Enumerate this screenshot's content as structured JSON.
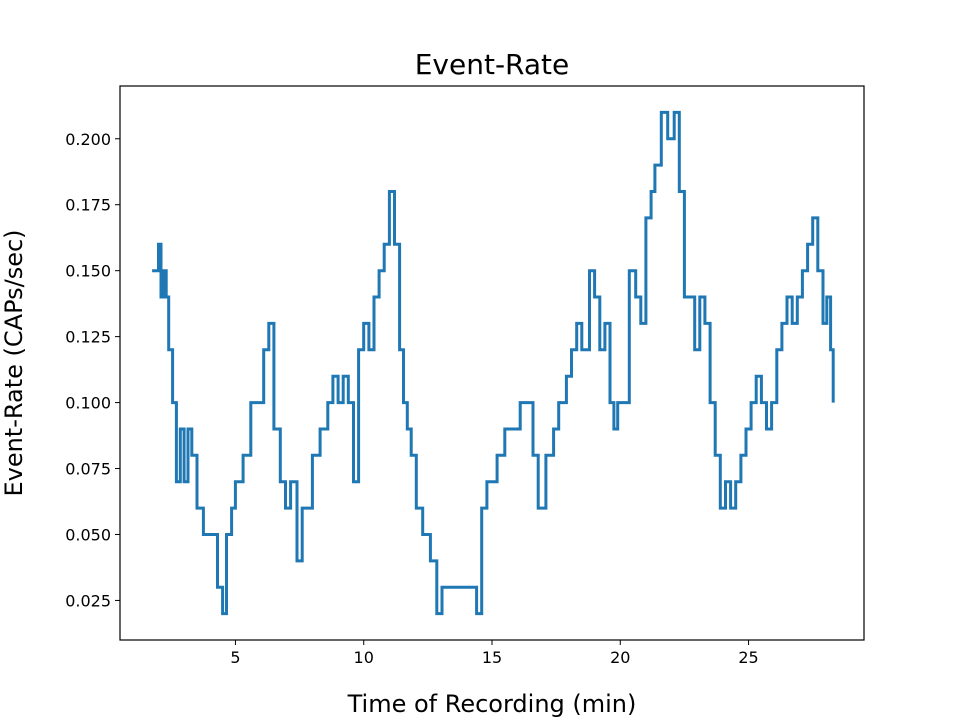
{
  "chart_data": {
    "type": "line",
    "title": "Event-Rate",
    "xlabel": "Time of Recording (min)",
    "ylabel": "Event-Rate (CAPs/sec)",
    "xlim": [
      0.5,
      29.5
    ],
    "ylim": [
      0.01,
      0.22
    ],
    "xticks": [
      5,
      10,
      15,
      20,
      25
    ],
    "yticks": [
      0.025,
      0.05,
      0.075,
      0.1,
      0.125,
      0.15,
      0.175,
      0.2
    ],
    "ytick_labels": [
      "0.025",
      "0.050",
      "0.075",
      "0.100",
      "0.125",
      "0.150",
      "0.175",
      "0.200"
    ],
    "grid": false,
    "series": [
      {
        "color": "#1f77b4",
        "x": [
          1.75,
          2.0,
          2.1,
          2.2,
          2.3,
          2.4,
          2.55,
          2.7,
          2.85,
          3.0,
          3.15,
          3.3,
          3.5,
          3.75,
          4.0,
          4.3,
          4.5,
          4.65,
          4.85,
          5.0,
          5.3,
          5.6,
          5.9,
          6.1,
          6.3,
          6.5,
          6.75,
          6.95,
          7.15,
          7.4,
          7.6,
          7.85,
          8.0,
          8.3,
          8.6,
          8.8,
          9.0,
          9.2,
          9.4,
          9.6,
          9.8,
          10.0,
          10.2,
          10.4,
          10.6,
          10.8,
          11.0,
          11.2,
          11.4,
          11.55,
          11.7,
          11.85,
          12.05,
          12.3,
          12.6,
          12.85,
          13.05,
          13.3,
          13.6,
          13.9,
          14.2,
          14.4,
          14.6,
          14.8,
          15.0,
          15.2,
          15.5,
          15.8,
          16.1,
          16.4,
          16.6,
          16.8,
          17.1,
          17.4,
          17.6,
          17.9,
          18.1,
          18.3,
          18.5,
          18.8,
          19.0,
          19.2,
          19.4,
          19.6,
          19.75,
          19.9,
          20.1,
          20.35,
          20.6,
          20.8,
          21.0,
          21.2,
          21.35,
          21.6,
          21.85,
          22.1,
          22.3,
          22.5,
          22.7,
          22.9,
          23.1,
          23.3,
          23.5,
          23.7,
          23.9,
          24.1,
          24.3,
          24.5,
          24.7,
          24.9,
          25.1,
          25.3,
          25.5,
          25.7,
          25.9,
          26.1,
          26.3,
          26.5,
          26.7,
          26.9,
          27.1,
          27.3,
          27.5,
          27.7,
          27.9,
          28.05,
          28.2,
          28.3
        ],
        "y": [
          0.15,
          0.16,
          0.14,
          0.15,
          0.14,
          0.12,
          0.1,
          0.07,
          0.09,
          0.07,
          0.09,
          0.08,
          0.06,
          0.05,
          0.05,
          0.03,
          0.02,
          0.05,
          0.06,
          0.07,
          0.08,
          0.1,
          0.1,
          0.12,
          0.13,
          0.09,
          0.07,
          0.06,
          0.07,
          0.04,
          0.06,
          0.06,
          0.08,
          0.09,
          0.1,
          0.11,
          0.1,
          0.11,
          0.1,
          0.07,
          0.12,
          0.13,
          0.12,
          0.14,
          0.15,
          0.16,
          0.18,
          0.16,
          0.12,
          0.1,
          0.09,
          0.08,
          0.06,
          0.05,
          0.04,
          0.02,
          0.03,
          0.03,
          0.03,
          0.03,
          0.03,
          0.02,
          0.06,
          0.07,
          0.07,
          0.08,
          0.09,
          0.09,
          0.1,
          0.1,
          0.08,
          0.06,
          0.08,
          0.09,
          0.1,
          0.11,
          0.12,
          0.13,
          0.12,
          0.15,
          0.14,
          0.12,
          0.13,
          0.1,
          0.09,
          0.1,
          0.1,
          0.15,
          0.14,
          0.13,
          0.17,
          0.18,
          0.19,
          0.21,
          0.2,
          0.21,
          0.18,
          0.14,
          0.14,
          0.12,
          0.14,
          0.13,
          0.1,
          0.08,
          0.06,
          0.07,
          0.06,
          0.07,
          0.08,
          0.09,
          0.1,
          0.11,
          0.1,
          0.09,
          0.1,
          0.12,
          0.13,
          0.14,
          0.13,
          0.14,
          0.15,
          0.16,
          0.17,
          0.15,
          0.13,
          0.14,
          0.12,
          0.1
        ]
      }
    ]
  }
}
